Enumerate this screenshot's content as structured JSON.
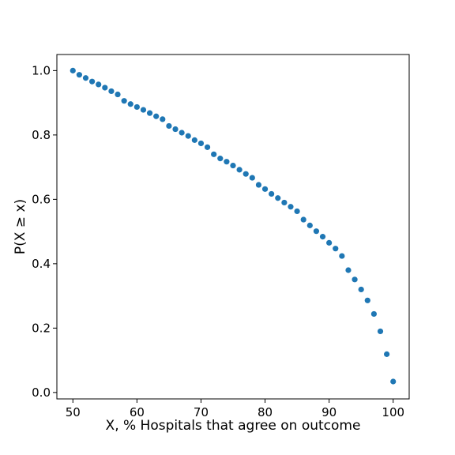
{
  "chart_data": {
    "type": "scatter",
    "title": "",
    "xlabel": "X, % Hospitals that agree on outcome",
    "ylabel": "P(X ≥ x)",
    "xlim": [
      47.5,
      102.5
    ],
    "ylim": [
      -0.02,
      1.05
    ],
    "xticks": [
      50,
      60,
      70,
      80,
      90,
      100
    ],
    "xtick_labels": [
      "50",
      "60",
      "70",
      "80",
      "90",
      "100"
    ],
    "yticks": [
      0.0,
      0.2,
      0.4,
      0.6,
      0.8,
      1.0
    ],
    "ytick_labels": [
      "0.0",
      "0.2",
      "0.4",
      "0.6",
      "0.8",
      "1.0"
    ],
    "grid": false,
    "legend": "none",
    "marker_color": "#1f77b4",
    "series": [
      {
        "x": [
          50,
          51,
          52,
          53,
          54,
          55,
          56,
          57,
          58,
          59,
          60,
          61,
          62,
          63,
          64,
          65,
          66,
          67,
          68,
          69,
          70,
          71,
          72,
          73,
          74,
          75,
          76,
          77,
          78,
          79,
          80,
          81,
          82,
          83,
          84,
          85,
          86,
          87,
          88,
          89,
          90,
          91,
          92,
          93,
          94,
          95,
          96,
          97,
          98,
          99,
          100
        ],
        "y": [
          1.0,
          0.987,
          0.977,
          0.966,
          0.957,
          0.947,
          0.936,
          0.926,
          0.906,
          0.896,
          0.887,
          0.878,
          0.868,
          0.858,
          0.849,
          0.828,
          0.818,
          0.807,
          0.797,
          0.784,
          0.774,
          0.762,
          0.74,
          0.727,
          0.717,
          0.705,
          0.692,
          0.679,
          0.667,
          0.645,
          0.632,
          0.617,
          0.604,
          0.59,
          0.577,
          0.563,
          0.537,
          0.519,
          0.501,
          0.484,
          0.465,
          0.447,
          0.424,
          0.38,
          0.351,
          0.32,
          0.286,
          0.244,
          0.19,
          0.119,
          0.034
        ]
      }
    ]
  }
}
